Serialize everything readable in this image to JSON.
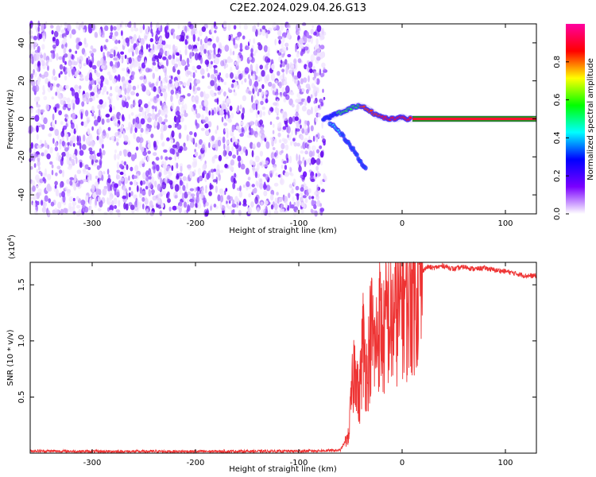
{
  "title": "C2E2.2024.029.04.26.G13",
  "chart_data": [
    {
      "type": "heatmap",
      "xlabel": "Height of straight line (km)",
      "ylabel": "Frequency (Hz)",
      "xlim": [
        -360,
        130
      ],
      "ylim": [
        -50,
        50
      ],
      "xticks": [
        -300,
        -200,
        -100,
        0,
        100
      ],
      "yticks": [
        -40,
        -20,
        0,
        20,
        40
      ],
      "noise_region_x": [
        -360,
        -75
      ],
      "signal_trace": {
        "x": [
          -75,
          -70,
          -62,
          -55,
          -48,
          -42,
          -36,
          -30,
          -25,
          -20,
          -14,
          -10,
          -5,
          0,
          5,
          10,
          130
        ],
        "freq": [
          0,
          1,
          3,
          4,
          6,
          7,
          6,
          4,
          2,
          1,
          0,
          0,
          0,
          1,
          0,
          0,
          0
        ]
      },
      "signal_branch": {
        "x": [
          -70,
          -62,
          -56,
          -50,
          -45,
          -41,
          -37,
          -34
        ],
        "freq": [
          -2,
          -6,
          -10,
          -14,
          -18,
          -22,
          -25,
          -27
        ]
      },
      "colorbar": {
        "label": "Normalized spectral amplitude",
        "range": [
          0,
          1
        ],
        "ticks": [
          0.0,
          0.2,
          0.4,
          0.6,
          0.8
        ],
        "colors": [
          "#ffffff",
          "#7a00ff",
          "#0000ff",
          "#00ffff",
          "#00ff00",
          "#ffff00",
          "#ff0000",
          "#ff00a0"
        ]
      }
    },
    {
      "type": "line",
      "xlabel": "Height of straight line (km)",
      "ylabel": "SNR (10 * v/v)",
      "scale_label": "(x10",
      "scale_exponent": "4",
      "scale_close": ")",
      "xlim": [
        -360,
        130
      ],
      "ylim": [
        0,
        17000
      ],
      "xticks": [
        -300,
        -200,
        -100,
        0,
        100
      ],
      "yticks": [
        5000,
        10000,
        15000
      ],
      "ytick_labels": [
        "0.5",
        "1.0",
        "1.5"
      ],
      "line_color": "#ee3333",
      "series": [
        {
          "x": [
            -360,
            -300,
            -200,
            -100,
            -60,
            -52,
            -48,
            -45,
            -42,
            -38,
            -34,
            -30,
            -26,
            -22,
            -18,
            -14,
            -10,
            -6,
            -2,
            0,
            5,
            10,
            15,
            20,
            25,
            30,
            40,
            50,
            60,
            70,
            80,
            90,
            100,
            110,
            120,
            130
          ],
          "y": [
            200,
            150,
            150,
            180,
            250,
            1500,
            6000,
            9000,
            4000,
            10000,
            7000,
            11000,
            9000,
            12000,
            10000,
            12500,
            11000,
            13000,
            12500,
            14500,
            13500,
            15000,
            15500,
            16300,
            16600,
            16500,
            16700,
            16400,
            16600,
            16400,
            16500,
            16300,
            16200,
            16000,
            15800,
            15800
          ]
        }
      ]
    }
  ]
}
